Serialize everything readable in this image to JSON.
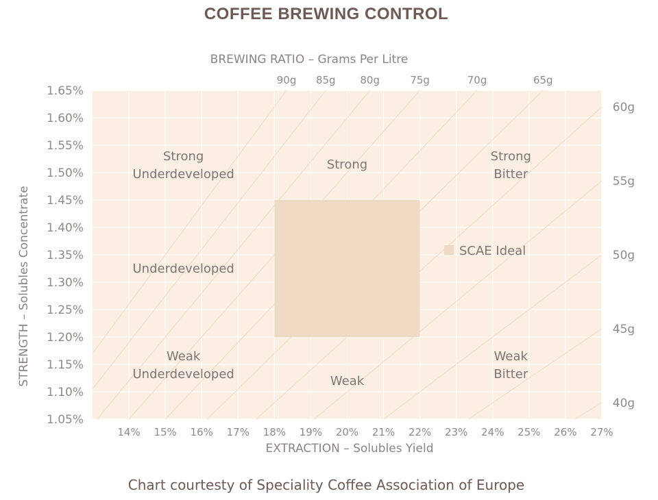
{
  "title": "COFFEE BREWING CONTROL",
  "credit": "Chart courtesty of Speciality Coffee Association of Europe",
  "colors": {
    "plot_bg": "#fbefe3",
    "ideal_fill": "#eed9c3",
    "ratio_lines": "#efd8c1",
    "grid": "#ffffff",
    "text": "#8f8a88",
    "title": "#6b5a55"
  },
  "chart_data": {
    "type": "area",
    "title": "COFFEE BREWING CONTROL",
    "xlabel": "EXTRACTION – Solubles Yield",
    "ylabel": "STRENGTH – Solubles Concentrate",
    "x2label": "BREWING RATIO – Grams Per Litre",
    "xlim": [
      13,
      27
    ],
    "ylim": [
      1.05,
      1.65
    ],
    "grid": true,
    "x_ticks": [
      "14%",
      "15%",
      "16%",
      "17%",
      "18%",
      "19%",
      "20%",
      "21%",
      "22%",
      "23%",
      "24%",
      "25%",
      "26%",
      "27%"
    ],
    "y_ticks": [
      "1.05%",
      "1.10%",
      "1.15%",
      "1.20%",
      "1.25%",
      "1.30%",
      "1.35%",
      "1.40%",
      "1.45%",
      "1.50%",
      "1.55%",
      "1.60%",
      "1.65%"
    ],
    "brewing_ratio_lines": [
      {
        "label": "90g",
        "g_per_l": 90
      },
      {
        "label": "85g",
        "g_per_l": 85
      },
      {
        "label": "80g",
        "g_per_l": 80
      },
      {
        "label": "75g",
        "g_per_l": 75
      },
      {
        "label": "70g",
        "g_per_l": 70
      },
      {
        "label": "65g",
        "g_per_l": 65
      },
      {
        "label": "60g",
        "g_per_l": 60
      },
      {
        "label": "55g",
        "g_per_l": 55
      },
      {
        "label": "50g",
        "g_per_l": 50
      },
      {
        "label": "45g",
        "g_per_l": 45
      },
      {
        "label": "40g",
        "g_per_l": 40
      }
    ],
    "ideal_region": {
      "name": "SCAE Ideal",
      "x": [
        18,
        22
      ],
      "y": [
        1.2,
        1.45
      ]
    },
    "legend": [
      {
        "name": "SCAE Ideal"
      }
    ],
    "zones": [
      {
        "lines": [
          "Strong",
          "Underdeveloped"
        ],
        "extraction": 15.5,
        "strength": 1.515
      },
      {
        "lines": [
          "Strong"
        ],
        "extraction": 20,
        "strength": 1.515
      },
      {
        "lines": [
          "Strong",
          "Bitter"
        ],
        "extraction": 24.5,
        "strength": 1.515
      },
      {
        "lines": [
          "Underdeveloped"
        ],
        "extraction": 15.5,
        "strength": 1.325
      },
      {
        "lines": [
          "Weak",
          "Underdeveloped"
        ],
        "extraction": 15.5,
        "strength": 1.15
      },
      {
        "lines": [
          "Weak"
        ],
        "extraction": 20,
        "strength": 1.12
      },
      {
        "lines": [
          "Weak",
          "Bitter"
        ],
        "extraction": 24.5,
        "strength": 1.15
      }
    ]
  }
}
